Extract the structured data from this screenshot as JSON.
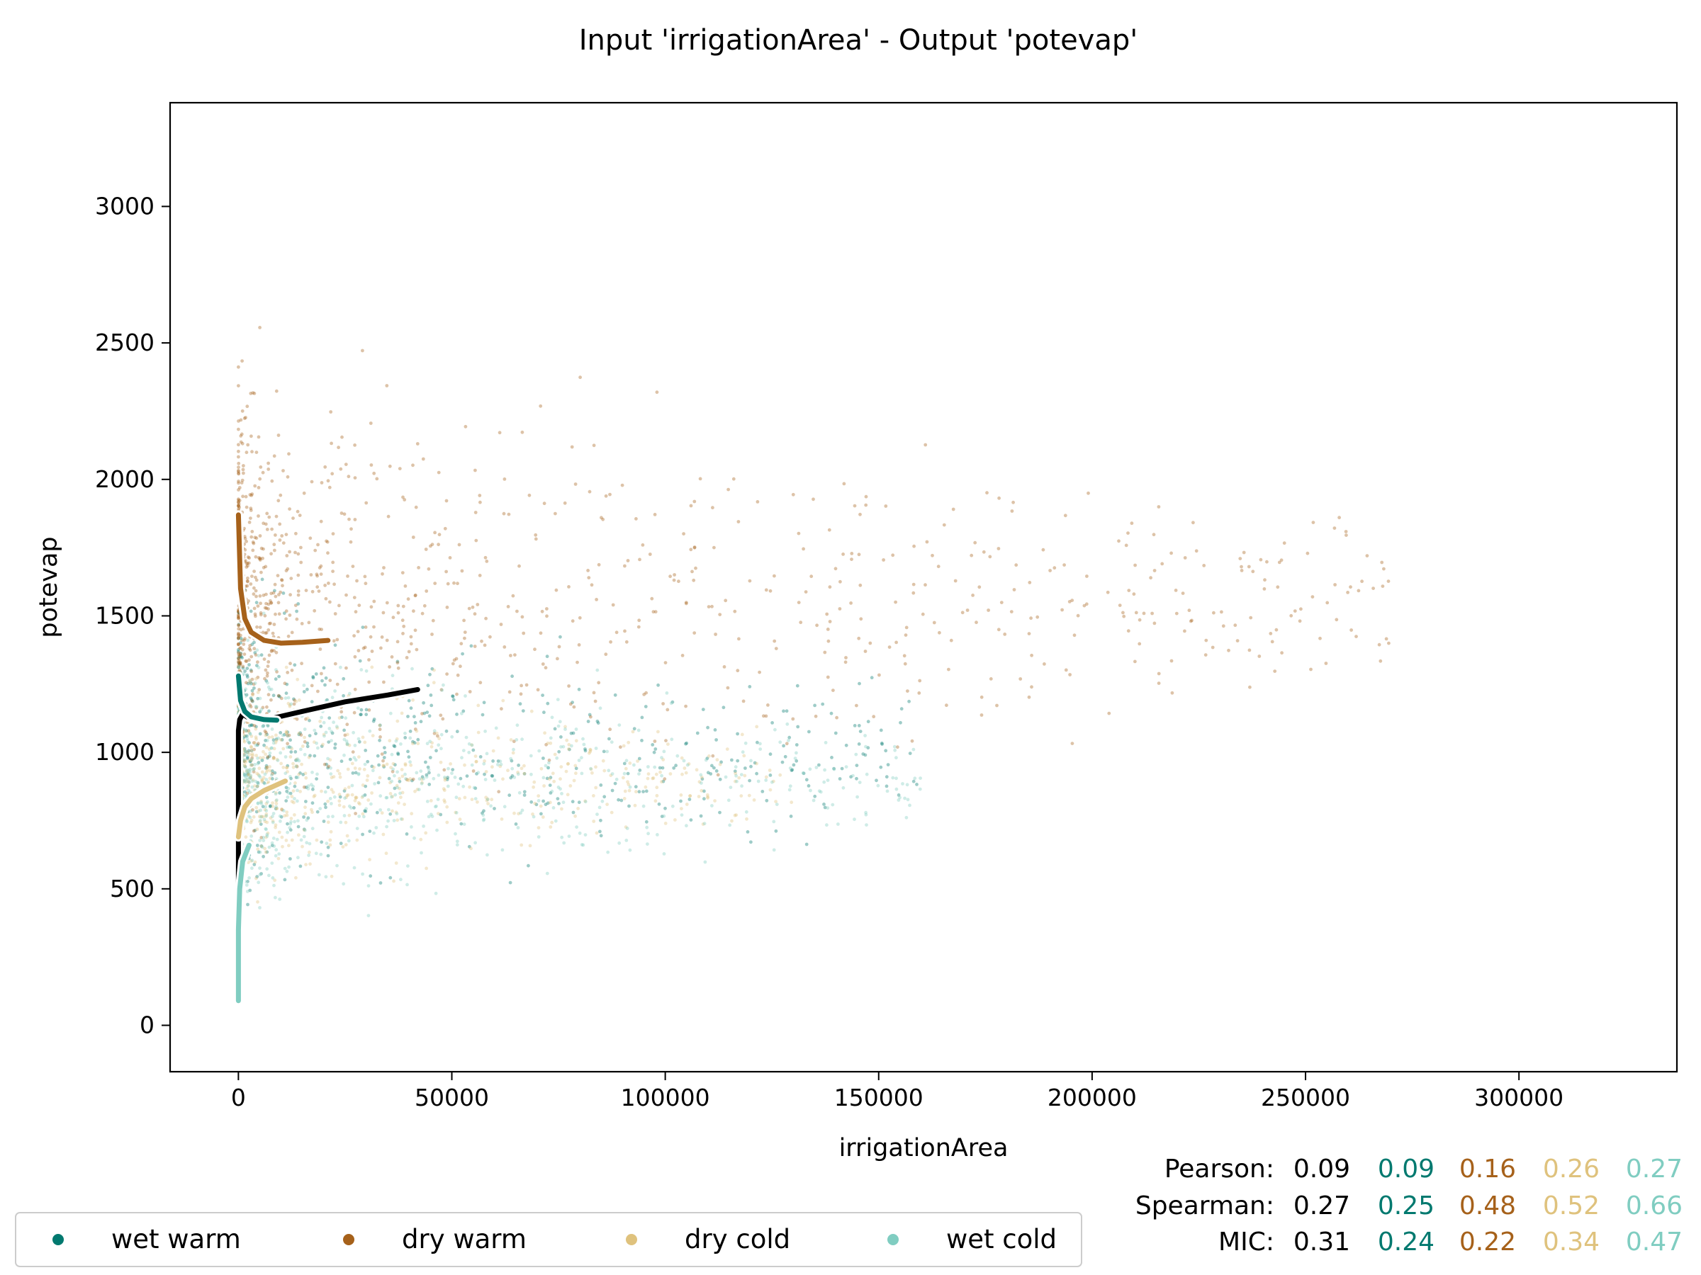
{
  "chart_data": {
    "type": "scatter",
    "title": "Input 'irrigationArea' - Output 'potevap'",
    "xlabel": "irrigationArea",
    "ylabel": "potevap",
    "xlim": [
      -16000,
      337000
    ],
    "ylim": [
      -170,
      3380
    ],
    "xticks": [
      0,
      50000,
      100000,
      150000,
      200000,
      250000,
      300000
    ],
    "yticks": [
      0,
      500,
      1000,
      1500,
      2000,
      2500,
      3000
    ],
    "grid": false,
    "legend": {
      "placement": "bottom-left"
    },
    "series": [
      {
        "name": "wet warm",
        "color": "#01796f",
        "cloud": {
          "x_range": [
            0,
            160000
          ],
          "y_center": 1000,
          "y_spread": 350
        },
        "trend": {
          "x": [
            0,
            500,
            1500,
            3000,
            6000,
            9000
          ],
          "y": [
            1280,
            1190,
            1150,
            1130,
            1120,
            1118
          ]
        }
      },
      {
        "name": "dry warm",
        "color": "#a6611a",
        "cloud": {
          "x_range": [
            0,
            270000
          ],
          "y_center": 1550,
          "y_spread": 500
        },
        "trend": {
          "x": [
            0,
            500,
            1500,
            3000,
            6000,
            10000,
            15000,
            21000
          ],
          "y": [
            1870,
            1600,
            1490,
            1440,
            1410,
            1400,
            1403,
            1410
          ]
        }
      },
      {
        "name": "dry cold",
        "color": "#dfc27d",
        "cloud": {
          "x_range": [
            0,
            130000
          ],
          "y_center": 900,
          "y_spread": 250
        },
        "trend": {
          "x": [
            0,
            500,
            1500,
            3000,
            6000,
            11000
          ],
          "y": [
            690,
            750,
            800,
            830,
            860,
            895
          ]
        }
      },
      {
        "name": "wet cold",
        "color": "#80cdc1",
        "cloud": {
          "x_range": [
            0,
            160000
          ],
          "y_center": 900,
          "y_spread": 300
        },
        "trend": {
          "x": [
            0,
            0,
            300,
            1000,
            2000,
            2500
          ],
          "y": [
            90,
            350,
            500,
            600,
            640,
            660
          ]
        }
      }
    ],
    "overall_trend": {
      "color": "#000000",
      "x": [
        0,
        0,
        300,
        1000,
        2000,
        4000,
        8000,
        15000,
        25000,
        35000,
        42000
      ],
      "y": [
        300,
        1080,
        1120,
        1140,
        1130,
        1120,
        1125,
        1150,
        1185,
        1210,
        1230
      ]
    }
  },
  "stats": {
    "colors": [
      "#000000",
      "#01796f",
      "#a6611a",
      "#dfc27d",
      "#80cdc1"
    ],
    "rows": [
      {
        "label": "Pearson:",
        "values": [
          "0.09",
          "0.09",
          "0.16",
          "0.26",
          "0.27"
        ]
      },
      {
        "label": "Spearman:",
        "values": [
          "0.27",
          "0.25",
          "0.48",
          "0.52",
          "0.66"
        ]
      },
      {
        "label": "MIC:",
        "values": [
          "0.31",
          "0.24",
          "0.22",
          "0.34",
          "0.47"
        ]
      }
    ]
  }
}
